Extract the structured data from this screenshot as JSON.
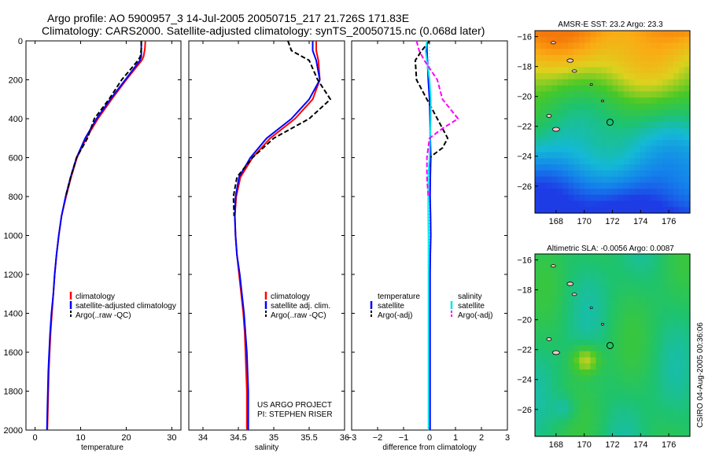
{
  "header": {
    "line1": "Argo profile: AO 5900957_3 14-Jul-2005 20050715_217 21.726S 171.83E",
    "line2": "Climatology: CARS2000. Satellite-adjusted climatology: synTS_20050715.nc (0.068d later)"
  },
  "credit": "CSIRO 04-Aug-2005 00:36:06",
  "project": {
    "line1": "US ARGO PROJECT",
    "line2": "PI: STEPHEN RISER"
  },
  "colors": {
    "climatology": "#ff0000",
    "satellite": "#0000ff",
    "argo": "#000000",
    "salinity_satellite": "#00e5ee",
    "salinity_argo": "#ff00ff"
  },
  "chart_data": [
    {
      "type": "line",
      "id": "temperature",
      "xlabel": "temperature",
      "ylabel": "",
      "xlim": [
        -2,
        32
      ],
      "ylim": [
        2000,
        0
      ],
      "xticks": [
        0,
        10,
        20,
        30
      ],
      "yticks": [
        0,
        200,
        400,
        600,
        800,
        1000,
        1200,
        1400,
        1600,
        1800,
        2000
      ],
      "legend": [
        "climatology",
        "satellite-adjusted climatology",
        "Argo(..raw -QC)"
      ],
      "series": [
        {
          "name": "climatology",
          "color": "#ff0000",
          "dash": "solid",
          "x": [
            24.2,
            24.1,
            23.8,
            23.4,
            20.0,
            16.8,
            13.8,
            11.2,
            9.2,
            7.9,
            6.8,
            5.8,
            5.2,
            4.7,
            4.3,
            4.0,
            3.7,
            3.4,
            3.2,
            3.0,
            2.9,
            2.8,
            2.7
          ],
          "y": [
            0,
            40,
            80,
            100,
            200,
            300,
            400,
            500,
            600,
            700,
            800,
            900,
            1000,
            1100,
            1200,
            1300,
            1400,
            1500,
            1600,
            1700,
            1800,
            1900,
            2000
          ]
        },
        {
          "name": "satellite-adjusted climatology",
          "color": "#0000ff",
          "dash": "solid",
          "x": [
            23.3,
            23.3,
            23.3,
            23.0,
            19.8,
            16.5,
            13.5,
            11.0,
            9.1,
            7.8,
            6.7,
            5.8,
            5.2,
            4.7,
            4.3,
            4.0,
            3.6,
            3.3,
            3.1,
            2.9,
            2.8,
            2.7,
            2.6
          ],
          "y": [
            0,
            40,
            80,
            100,
            200,
            300,
            400,
            500,
            600,
            700,
            800,
            900,
            1000,
            1100,
            1200,
            1300,
            1400,
            1500,
            1600,
            1700,
            1800,
            1900,
            2000
          ]
        },
        {
          "name": "Argo(..raw -QC)",
          "color": "#000000",
          "dash": "dash",
          "x": [
            23.3,
            23.3,
            23.1,
            22.6,
            19.0,
            16.2,
            13.0,
            11.5,
            9.1,
            7.8,
            6.7
          ],
          "y": [
            0,
            40,
            80,
            100,
            200,
            300,
            400,
            500,
            600,
            700,
            800
          ]
        }
      ]
    },
    {
      "type": "line",
      "id": "salinity",
      "xlabel": "salinity",
      "xlim": [
        33.8,
        36.0
      ],
      "ylim": [
        2000,
        0
      ],
      "xticks": [
        34,
        34.5,
        35,
        35.5,
        36
      ],
      "legend": [
        "climatology",
        "satellite adj. clim.",
        "Argo(..raw -QC)"
      ],
      "series": [
        {
          "name": "climatology",
          "color": "#ff0000",
          "dash": "solid",
          "x": [
            35.6,
            35.6,
            35.63,
            35.65,
            35.55,
            35.3,
            34.95,
            34.7,
            34.53,
            34.47,
            34.45,
            34.46,
            34.48,
            34.51,
            34.54,
            34.57,
            34.59,
            34.6,
            34.61,
            34.62,
            34.62,
            34.62
          ],
          "y": [
            0,
            50,
            100,
            200,
            300,
            400,
            500,
            600,
            700,
            800,
            900,
            1000,
            1100,
            1200,
            1300,
            1400,
            1500,
            1600,
            1700,
            1800,
            1900,
            2000
          ]
        },
        {
          "name": "satellite adj. clim.",
          "color": "#0000ff",
          "dash": "solid",
          "x": [
            35.55,
            35.55,
            35.6,
            35.65,
            35.5,
            35.25,
            34.9,
            34.67,
            34.51,
            34.46,
            34.45,
            34.46,
            34.48,
            34.52,
            34.55,
            34.58,
            34.6,
            34.62,
            34.63,
            34.64,
            34.64,
            34.64
          ],
          "y": [
            0,
            50,
            100,
            200,
            300,
            400,
            500,
            600,
            700,
            800,
            900,
            1000,
            1100,
            1200,
            1300,
            1400,
            1500,
            1600,
            1700,
            1800,
            1900,
            2000
          ]
        },
        {
          "name": "Argo(..raw -QC)",
          "color": "#000000",
          "dash": "dash",
          "x": [
            35.2,
            35.25,
            35.5,
            35.62,
            35.8,
            35.5,
            35.0,
            34.7,
            34.48,
            34.43,
            34.44
          ],
          "y": [
            0,
            50,
            100,
            200,
            300,
            400,
            500,
            600,
            700,
            800,
            900
          ]
        }
      ]
    },
    {
      "type": "line",
      "id": "difference",
      "xlabel": "difference from climatology",
      "xlim": [
        -3,
        3
      ],
      "ylim": [
        2000,
        0
      ],
      "xticks": [
        -3,
        -2,
        -1,
        0,
        1,
        2,
        3
      ],
      "legend_temperature": {
        "title": "temperature",
        "items": [
          "satellite",
          "Argo(-adj)"
        ]
      },
      "legend_salinity": {
        "title": "salinity",
        "items": [
          "satellite",
          "Argo(-adj)"
        ]
      },
      "series": [
        {
          "name": "temperature satellite",
          "color": "#0000ff",
          "dash": "solid",
          "x": [
            -0.1,
            -0.1,
            -0.08,
            -0.05,
            0.0,
            0.02,
            0.03,
            0.05,
            0.03,
            0.02,
            0.04,
            0.05,
            0.03,
            0.02,
            0.02,
            0.02,
            0.02,
            0.02,
            0.02
          ],
          "y": [
            0,
            50,
            100,
            200,
            300,
            400,
            500,
            600,
            700,
            800,
            900,
            1000,
            1100,
            1200,
            1400,
            1600,
            1800,
            1900,
            2000
          ]
        },
        {
          "name": "temperature Argo(-adj)",
          "color": "#000000",
          "dash": "dash",
          "x": [
            0.0,
            -0.3,
            -0.55,
            -0.5,
            -0.1,
            0.3,
            0.7,
            0.5,
            0.0,
            0.0
          ],
          "y": [
            0,
            50,
            100,
            200,
            300,
            400,
            500,
            550,
            600,
            650
          ]
        },
        {
          "name": "salinity satellite",
          "color": "#00e5ee",
          "dash": "solid",
          "x": [
            -0.1,
            -0.15,
            -0.1,
            0.0,
            0.05,
            0.05,
            0.02,
            0.0,
            -0.05,
            -0.05,
            -0.05,
            -0.04,
            -0.04,
            -0.04,
            -0.04,
            -0.04
          ],
          "y": [
            0,
            50,
            100,
            200,
            300,
            400,
            500,
            600,
            700,
            800,
            900,
            1000,
            1200,
            1500,
            1800,
            2000
          ]
        },
        {
          "name": "salinity Argo(-adj)",
          "color": "#ff00ff",
          "dash": "dash",
          "x": [
            -0.5,
            -0.4,
            -0.2,
            0.3,
            0.5,
            1.1,
            0.5,
            0.0,
            -0.1,
            -0.1,
            -0.05
          ],
          "y": [
            0,
            50,
            100,
            200,
            300,
            400,
            450,
            500,
            600,
            700,
            800
          ]
        }
      ]
    },
    {
      "type": "heatmap",
      "id": "sst-map",
      "title": "AMSR-E SST: 23.2 Argo: 23.3",
      "xlim": [
        166.5,
        177.5
      ],
      "ylim": [
        -27.8,
        -15.6
      ],
      "xticks": [
        168,
        170,
        172,
        174,
        176
      ],
      "yticks": [
        -16,
        -18,
        -20,
        -22,
        -24,
        -26
      ],
      "marker": {
        "lon": 171.83,
        "lat": -21.726
      }
    },
    {
      "type": "heatmap",
      "id": "sla-map",
      "title": "Altimetric SLA: -0.0056 Argo: 0.0087",
      "xlim": [
        166.5,
        177.5
      ],
      "ylim": [
        -27.8,
        -15.6
      ],
      "xticks": [
        168,
        170,
        172,
        174,
        176
      ],
      "yticks": [
        -16,
        -18,
        -20,
        -22,
        -24,
        -26
      ],
      "marker": {
        "lon": 171.83,
        "lat": -21.726
      }
    }
  ]
}
